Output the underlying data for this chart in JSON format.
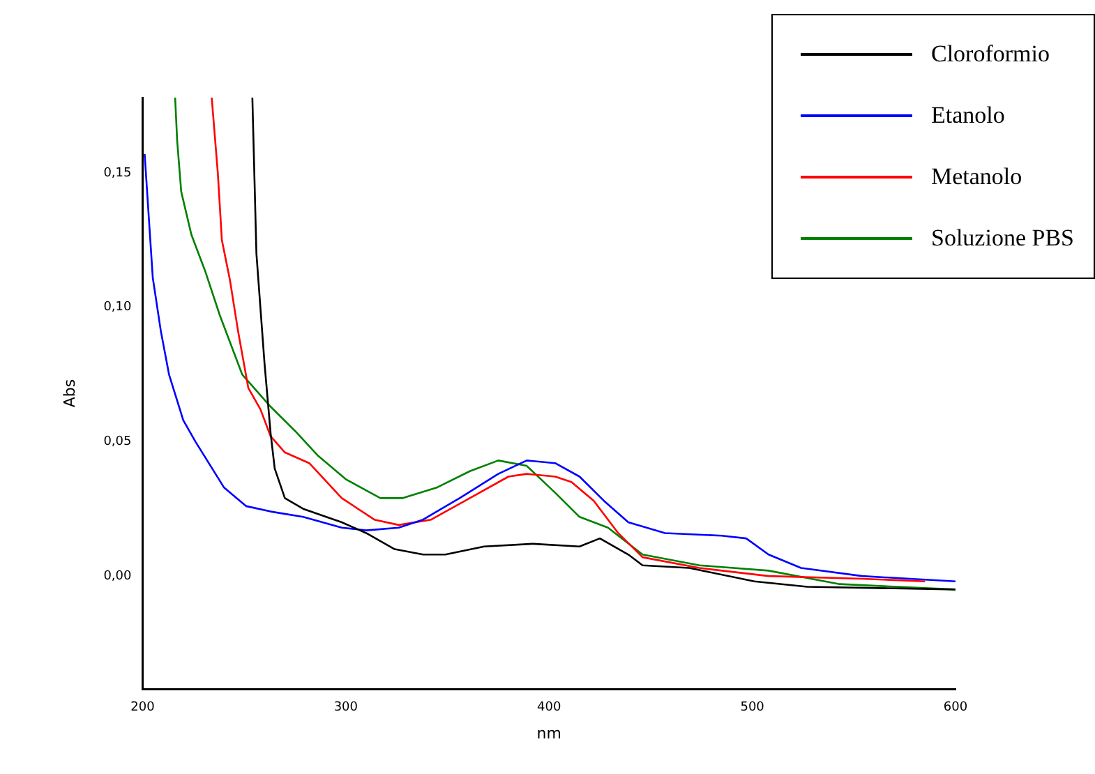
{
  "chart_data": {
    "type": "line",
    "xlabel": "nm",
    "ylabel": "Abs",
    "xlim": [
      200,
      600
    ],
    "xticks": [
      200,
      300,
      400,
      500,
      600
    ],
    "ylim": [
      -0.042,
      0.178
    ],
    "yticks": [
      {
        "value": 0,
        "label": "0,00"
      },
      {
        "value": 0.05,
        "label": "0,05"
      },
      {
        "value": 0.1,
        "label": "0,10"
      },
      {
        "value": 0.15,
        "label": "0,15"
      }
    ],
    "grid": false,
    "legend": "top right",
    "marker": "none",
    "line_style": "solid",
    "series": [
      {
        "name": "Cloroformio",
        "color": "#000000",
        "x": [
          254,
          256,
          260,
          263,
          265,
          270,
          279,
          298,
          310,
          324,
          338,
          349,
          368,
          392,
          415,
          425,
          439,
          446,
          469,
          501,
          527,
          600
        ],
        "values": [
          0.178,
          0.12,
          0.079,
          0.053,
          0.04,
          0.029,
          0.025,
          0.02,
          0.016,
          0.01,
          0.008,
          0.008,
          0.011,
          0.012,
          0.011,
          0.014,
          0.008,
          0.004,
          0.003,
          -0.002,
          -0.004,
          -0.005
        ]
      },
      {
        "name": "Etanolo",
        "color": "#0000ff",
        "x": [
          201,
          203,
          205,
          209,
          213,
          220,
          226,
          240,
          251,
          263,
          279,
          298,
          310,
          326,
          338,
          356,
          375,
          389,
          403,
          415,
          427,
          439,
          457,
          485,
          497,
          508,
          524,
          554,
          600
        ],
        "values": [
          0.157,
          0.134,
          0.111,
          0.091,
          0.075,
          0.058,
          0.05,
          0.033,
          0.026,
          0.024,
          0.022,
          0.018,
          0.017,
          0.018,
          0.021,
          0.029,
          0.038,
          0.043,
          0.042,
          0.037,
          0.028,
          0.02,
          0.016,
          0.015,
          0.014,
          0.008,
          0.003,
          0.0,
          -0.002
        ]
      },
      {
        "name": "Metanolo",
        "color": "#ff0000",
        "x": [
          234,
          237,
          239,
          243,
          247,
          252,
          258,
          263,
          270,
          282,
          298,
          314,
          326,
          342,
          361,
          380,
          389,
          403,
          411,
          422,
          434,
          446,
          474,
          508,
          554,
          585
        ],
        "values": [
          0.178,
          0.15,
          0.125,
          0.11,
          0.091,
          0.07,
          0.062,
          0.052,
          0.046,
          0.042,
          0.029,
          0.021,
          0.019,
          0.021,
          0.029,
          0.037,
          0.038,
          0.037,
          0.035,
          0.028,
          0.016,
          0.007,
          0.003,
          0.0,
          -0.001,
          -0.002
        ]
      },
      {
        "name": "Soluzione PBS",
        "color": "#008000",
        "x": [
          216,
          217,
          219,
          224,
          231,
          238,
          249,
          263,
          275,
          286,
          300,
          317,
          328,
          345,
          361,
          375,
          389,
          403,
          415,
          429,
          446,
          474,
          508,
          543,
          600
        ],
        "values": [
          0.178,
          0.162,
          0.143,
          0.127,
          0.113,
          0.097,
          0.075,
          0.063,
          0.054,
          0.045,
          0.036,
          0.029,
          0.029,
          0.033,
          0.039,
          0.043,
          0.041,
          0.031,
          0.022,
          0.018,
          0.008,
          0.004,
          0.002,
          -0.003,
          -0.005
        ]
      }
    ]
  }
}
